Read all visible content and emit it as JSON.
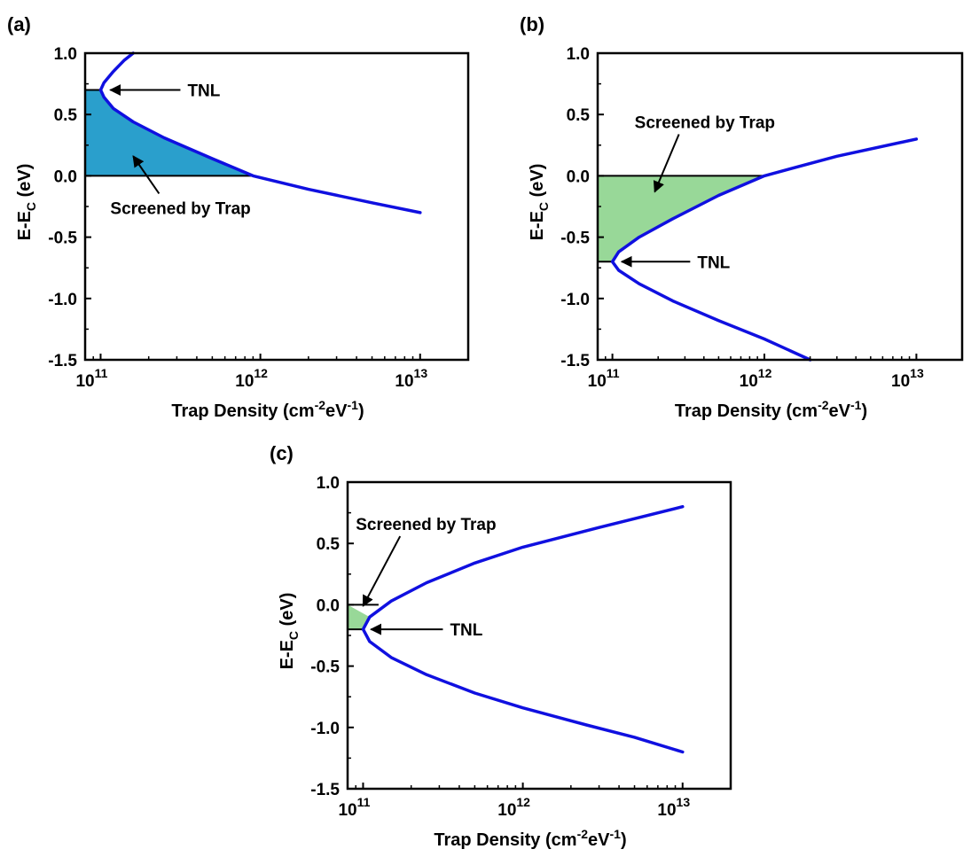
{
  "chart_data": [
    {
      "panel_label": "(a)",
      "type": "line",
      "xlabel": "Trap Density (cm-2eV-1)",
      "ylabel": "E-EC (eV)",
      "xscale": "log",
      "xlim": [
        80000000000,
        20000000000000
      ],
      "ylim": [
        -1.5,
        1.0
      ],
      "xticks": [
        100000000000,
        1000000000000,
        10000000000000
      ],
      "xtick_labels": [
        "10^11",
        "10^12",
        "10^13"
      ],
      "yticks": [
        -1.5,
        -1.0,
        -0.5,
        0.0,
        0.5,
        1.0
      ],
      "ytick_labels": [
        "-1.5",
        "-1.0",
        "-0.5",
        "0.0",
        "0.5",
        "1.0"
      ],
      "series": [
        {
          "color": "#1010e0",
          "x": [
            160000000000,
            140000000000,
            120000000000,
            105000000000,
            100000000000,
            105000000000,
            120000000000,
            160000000000,
            250000000000,
            500000000000,
            900000000000,
            2000000000000,
            5000000000000,
            10000000000000
          ],
          "y": [
            1.0,
            0.94,
            0.85,
            0.76,
            0.7,
            0.64,
            0.55,
            0.44,
            0.31,
            0.14,
            0.0,
            -0.11,
            -0.22,
            -0.3
          ]
        }
      ],
      "shaded_region": {
        "color": "#2a9fcc",
        "label": "Screened by Trap",
        "y_from": 0.0,
        "y_to": 0.7,
        "x_to": 900000000000
      },
      "tnl": {
        "y": 0.7,
        "label": "TNL"
      },
      "annotations": [
        {
          "text": "TNL",
          "x": 180000000000,
          "y": 0.7,
          "arrow_to": [
            115000000000,
            0.7
          ]
        },
        {
          "text": "Screened by Trap",
          "x": 115000000000,
          "y": -0.26,
          "arrow_to": [
            160000000000,
            0.16
          ]
        }
      ]
    },
    {
      "panel_label": "(b)",
      "type": "line",
      "xlabel": "Trap Density (cm-2eV-1)",
      "ylabel": "E-EC (eV)",
      "xscale": "log",
      "xlim": [
        80000000000,
        20000000000000
      ],
      "ylim": [
        -1.5,
        1.0
      ],
      "xticks": [
        100000000000,
        1000000000000,
        10000000000000
      ],
      "xtick_labels": [
        "10^11",
        "10^12",
        "10^13"
      ],
      "yticks": [
        -1.5,
        -1.0,
        -0.5,
        0.0,
        0.5,
        1.0
      ],
      "ytick_labels": [
        "-1.5",
        "-1.0",
        "-0.5",
        "0.0",
        "0.5",
        "1.0"
      ],
      "series": [
        {
          "color": "#1010e0",
          "x": [
            2000000000000,
            1000000000000,
            500000000000,
            250000000000,
            150000000000,
            110000000000,
            100000000000,
            110000000000,
            150000000000,
            250000000000,
            500000000000,
            1000000000000,
            3000000000000,
            10000000000000
          ],
          "y": [
            -1.5,
            -1.33,
            -1.18,
            -1.02,
            -0.88,
            -0.77,
            -0.7,
            -0.62,
            -0.5,
            -0.35,
            -0.16,
            0.0,
            0.16,
            0.3
          ]
        }
      ],
      "shaded_region": {
        "color": "#98d898",
        "label": "Screened by Trap",
        "y_from": -0.7,
        "y_to": 0.0,
        "x_to": 1000000000000
      },
      "tnl": {
        "y": -0.7,
        "label": "TNL"
      },
      "annotations": [
        {
          "text": "Screened by Trap",
          "x": 140000000000,
          "y": 0.44,
          "arrow_to": [
            190000000000,
            -0.13
          ]
        },
        {
          "text": "TNL",
          "x": 180000000000,
          "y": -0.7,
          "arrow_to": [
            115000000000,
            -0.7
          ]
        }
      ]
    },
    {
      "panel_label": "(c)",
      "type": "line",
      "xlabel": "Trap Density (cm-2eV-1)",
      "ylabel": "E-EC (eV)",
      "xscale": "log",
      "xlim": [
        80000000000,
        20000000000000
      ],
      "ylim": [
        -1.5,
        1.0
      ],
      "xticks": [
        100000000000,
        1000000000000,
        10000000000000
      ],
      "xtick_labels": [
        "10^11",
        "10^12",
        "10^13"
      ],
      "yticks": [
        -1.5,
        -1.0,
        -0.5,
        0.0,
        0.5,
        1.0
      ],
      "ytick_labels": [
        "-1.5",
        "-1.0",
        "-0.5",
        "0.0",
        "0.5",
        "1.0"
      ],
      "series": [
        {
          "color": "#1010e0",
          "x": [
            10000000000000,
            5000000000000,
            2500000000000,
            1000000000000,
            500000000000,
            250000000000,
            150000000000,
            110000000000,
            100000000000,
            110000000000,
            150000000000,
            250000000000,
            500000000000,
            1000000000000,
            3000000000000,
            10000000000000
          ],
          "y": [
            -1.2,
            -1.08,
            -0.98,
            -0.84,
            -0.72,
            -0.57,
            -0.43,
            -0.3,
            -0.2,
            -0.1,
            0.03,
            0.18,
            0.34,
            0.47,
            0.63,
            0.8
          ]
        }
      ],
      "shaded_region": {
        "color": "#98d898",
        "label": "Screened by Trap",
        "y_from": -0.2,
        "y_to": 0.0,
        "x_to": 125000000000
      },
      "tnl": {
        "y": -0.2,
        "label": "TNL"
      },
      "annotations": [
        {
          "text": "Screened by Trap",
          "x": 90000000000,
          "y": 0.66,
          "arrow_to": [
            100000000000,
            -0.01
          ]
        },
        {
          "text": "TNL",
          "x": 180000000000,
          "y": -0.2,
          "arrow_to": [
            112000000000,
            -0.2
          ]
        }
      ]
    }
  ]
}
